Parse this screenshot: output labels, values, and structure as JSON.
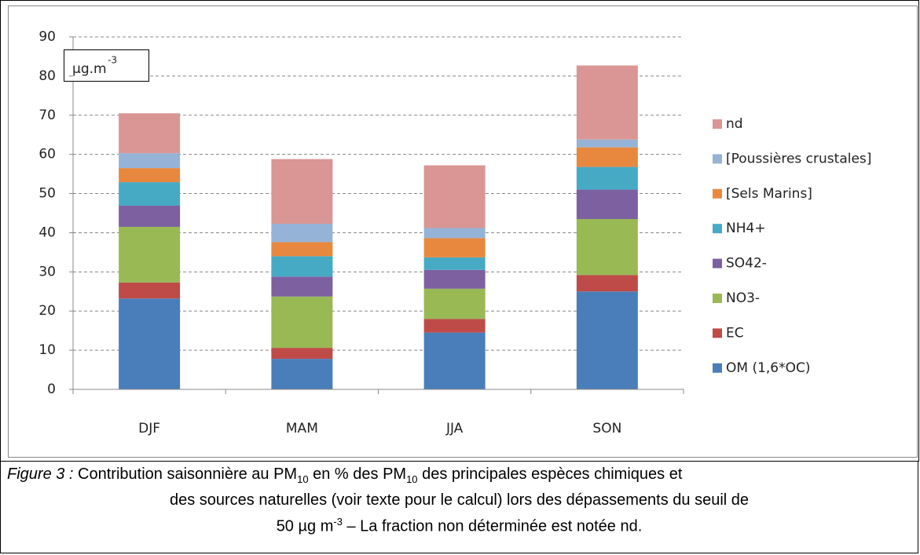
{
  "chart_data": {
    "type": "stacked_bar",
    "unit_label": {
      "base": "µg.m",
      "sup": "-3"
    },
    "categories": [
      "DJF",
      "MAM",
      "JJA",
      "SON"
    ],
    "ylim": [
      0,
      90
    ],
    "yticks": [
      0,
      10,
      20,
      30,
      40,
      50,
      60,
      70,
      80,
      90
    ],
    "grid": true,
    "series": [
      {
        "name": "OM (1,6*OC)",
        "color": "#4a7ebb",
        "values": [
          23.2,
          7.8,
          14.5,
          25.0
        ]
      },
      {
        "name": "EC",
        "color": "#be4b48",
        "values": [
          4.1,
          2.8,
          3.5,
          4.2
        ]
      },
      {
        "name": "NO3-",
        "color": "#98b954",
        "values": [
          14.2,
          13.1,
          7.7,
          14.3
        ]
      },
      {
        "name": "SO42-",
        "color": "#7d60a0",
        "values": [
          5.4,
          5.1,
          4.8,
          7.5
        ]
      },
      {
        "name": "NH4+",
        "color": "#46aac5",
        "values": [
          6.0,
          5.2,
          3.2,
          5.8
        ]
      },
      {
        "name": "[Sels Marins]",
        "color": "#e8883e",
        "values": [
          3.6,
          3.6,
          4.9,
          5.0
        ]
      },
      {
        "name": "[Poussières crustales]",
        "color": "#95b3d7",
        "values": [
          3.8,
          4.7,
          2.6,
          2.0
        ]
      },
      {
        "name": "nd",
        "color": "#d99694",
        "values": [
          10.2,
          16.5,
          16.0,
          18.9
        ]
      }
    ]
  },
  "caption": {
    "label": "Figure 3 :",
    "text1": "Contribution saisonnière au PM",
    "sub1": "10",
    "text2": " en % des PM",
    "sub2": "10",
    "text3": " des principales espèces chimiques et",
    "text4": "des sources naturelles (voir texte pour le calcul) lors des dépassements du seuil de",
    "text5": "50 µg m",
    "sup": "-3",
    "text6": "  – La fraction non déterminée est notée nd."
  }
}
